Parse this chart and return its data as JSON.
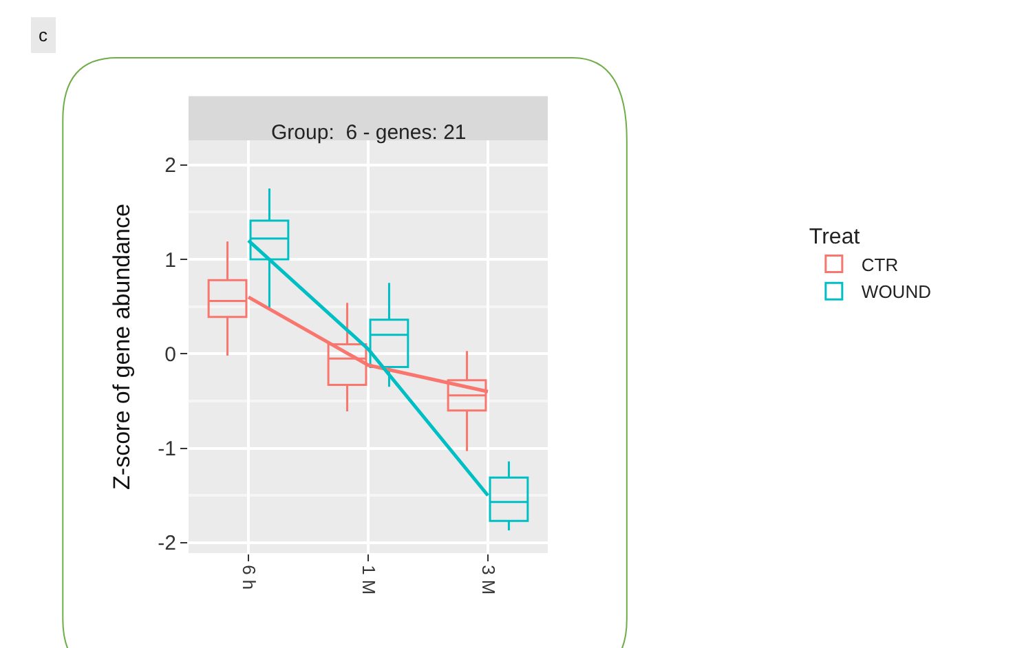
{
  "chart_data": {
    "type": "box",
    "title": "Group:  6 - genes: 21",
    "ylabel": "Z-score of gene abundance",
    "legend_title": "Treat",
    "categories": [
      "6 h",
      "1 M",
      "3 M"
    ],
    "series": [
      {
        "name": "CTR",
        "color": "#f8766d",
        "boxes": [
          {
            "low": -0.02,
            "q1": 0.39,
            "median": 0.56,
            "q3": 0.78,
            "high": 1.19
          },
          {
            "low": -0.61,
            "q1": -0.33,
            "median": -0.05,
            "q3": 0.1,
            "high": 0.54
          },
          {
            "low": -1.03,
            "q1": -0.6,
            "median": -0.44,
            "q3": -0.28,
            "high": 0.03
          }
        ]
      },
      {
        "name": "WOUND",
        "color": "#00bfc4",
        "boxes": [
          {
            "low": 0.49,
            "q1": 1.0,
            "median": 1.22,
            "q3": 1.41,
            "high": 1.75
          },
          {
            "low": -0.35,
            "q1": -0.14,
            "median": 0.2,
            "q3": 0.36,
            "high": 0.75
          },
          {
            "low": -1.87,
            "q1": -1.77,
            "median": -1.57,
            "q3": -1.31,
            "high": -1.14
          }
        ]
      },
      {
        "type": "line",
        "color": "#f8766d",
        "values": [
          0.6,
          -0.12,
          -0.4
        ]
      },
      {
        "type": "line",
        "color": "#00bfc4",
        "values": [
          1.2,
          0.05,
          -1.5
        ]
      }
    ],
    "ylim": [
      -2.11,
      2.26
    ],
    "yticks": [
      -2,
      -1,
      0,
      1,
      2
    ],
    "grid": true,
    "legend": "right",
    "annotations": [
      "c"
    ]
  }
}
